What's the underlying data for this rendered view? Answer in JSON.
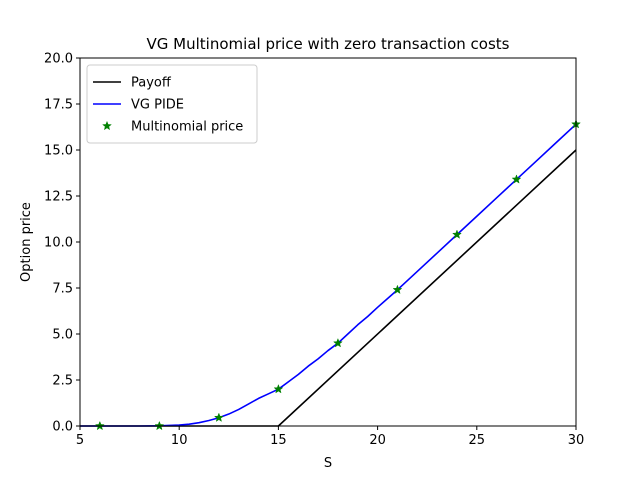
{
  "chart_data": {
    "type": "line",
    "title": "VG Multinomial price with zero transaction costs",
    "xlabel": "S",
    "ylabel": "Option price",
    "xlim": [
      5,
      30
    ],
    "ylim": [
      0,
      20
    ],
    "xticks": [
      5,
      10,
      15,
      20,
      25,
      30
    ],
    "xtick_labels": [
      "5",
      "10",
      "15",
      "20",
      "25",
      "30"
    ],
    "yticks": [
      0,
      2.5,
      5,
      7.5,
      10,
      12.5,
      15,
      17.5,
      20
    ],
    "ytick_labels": [
      "0.0",
      "2.5",
      "5.0",
      "7.5",
      "10.0",
      "12.5",
      "15.0",
      "17.5",
      "20.0"
    ],
    "legend_position": "top-left",
    "grid": false,
    "series": [
      {
        "name": "Payoff",
        "style": "line",
        "color": "#000000",
        "x": [
          5,
          15,
          30
        ],
        "y": [
          0,
          0,
          15
        ]
      },
      {
        "name": "VG PIDE",
        "style": "line",
        "color": "#0000ff",
        "x": [
          5,
          6,
          7,
          8,
          9,
          10,
          10.5,
          11,
          11.5,
          12,
          12.5,
          13,
          13.5,
          14,
          14.5,
          15,
          15.5,
          16,
          16.5,
          17,
          17.5,
          18,
          18.5,
          19,
          19.5,
          20,
          21,
          22,
          23,
          24,
          25,
          26,
          27,
          28,
          29,
          30
        ],
        "y": [
          0,
          0,
          0,
          0,
          0.01,
          0.05,
          0.1,
          0.18,
          0.3,
          0.45,
          0.65,
          0.9,
          1.2,
          1.5,
          1.75,
          2.0,
          2.4,
          2.8,
          3.25,
          3.65,
          4.1,
          4.5,
          5.0,
          5.5,
          5.95,
          6.45,
          7.4,
          8.4,
          9.4,
          10.4,
          11.4,
          12.4,
          13.4,
          14.4,
          15.4,
          16.4
        ]
      },
      {
        "name": "Multinomial price",
        "style": "marker",
        "marker": "star",
        "color": "#008000",
        "x": [
          6,
          9,
          12,
          15,
          18,
          21,
          24,
          27,
          30
        ],
        "y": [
          0,
          0,
          0.45,
          2.0,
          4.5,
          7.4,
          10.4,
          13.4,
          16.4
        ]
      }
    ]
  }
}
